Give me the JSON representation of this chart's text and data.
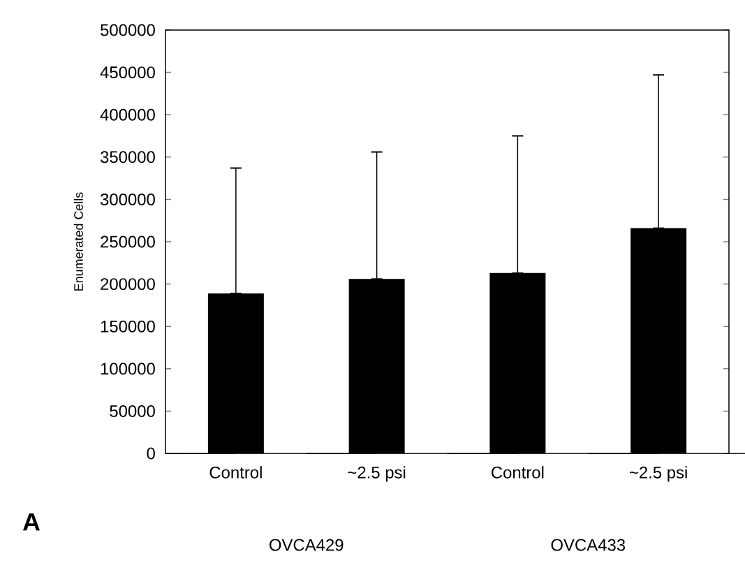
{
  "chart_data": {
    "type": "bar",
    "ylabel": "Enumerated Cells",
    "categories": [
      "Control",
      "~2.5 psi",
      "Control",
      "~2.5 psi"
    ],
    "values": [
      189000,
      206000,
      213000,
      266000
    ],
    "errors": [
      [
        189000,
        337000
      ],
      [
        206000,
        356000
      ],
      [
        213000,
        375000
      ],
      [
        266000,
        447000
      ]
    ],
    "color": "#000000",
    "ylim": [
      0,
      500000
    ],
    "yticks": [
      0,
      50000,
      100000,
      150000,
      200000,
      250000,
      300000,
      350000,
      400000,
      450000,
      500000
    ],
    "grid": false,
    "annotations": [
      "A",
      "OVCA429",
      "OVCA433"
    ]
  }
}
